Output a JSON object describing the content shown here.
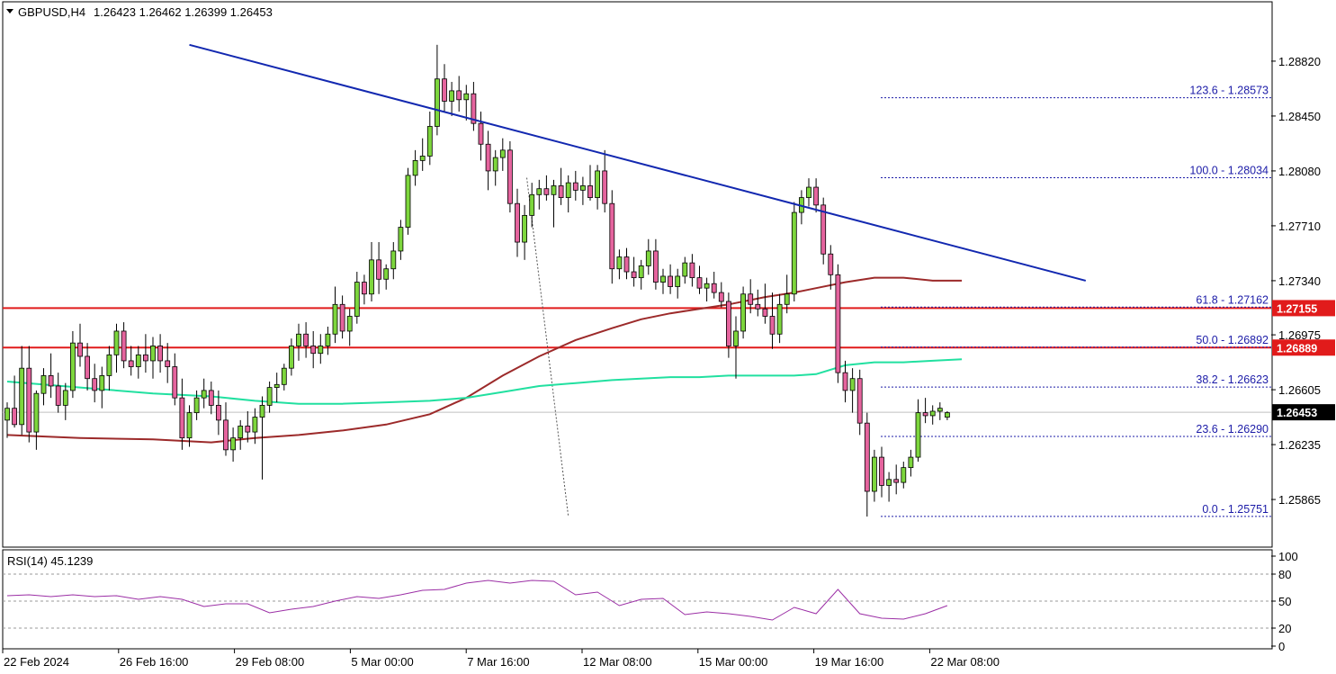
{
  "header": {
    "symbol": "GBPUSD,H4",
    "ohlc": "1.26423 1.26462 1.26399 1.26453"
  },
  "rsi_header": "RSI(14) 45.1239",
  "colors": {
    "bull": "#7dd63d",
    "bear": "#e5649e",
    "ma_slow": "#9c2a2a",
    "ma_fast": "#21e0a0",
    "trendline": "#1228b0",
    "support": "#e11b1b",
    "fib": "#1c1ca8",
    "rsi": "#9b2ea5"
  },
  "chart_data": [
    {
      "type": "candlestick",
      "title": "GBPUSD,H4",
      "ylim": [
        1.2555,
        1.2922
      ],
      "y_ticks": [
        "1.28820",
        "1.28450",
        "1.28080",
        "1.27710",
        "1.27340",
        "1.26975",
        "1.26605",
        "1.26235",
        "1.25865"
      ],
      "x_tick_labels": [
        "22 Feb 2024",
        "26 Feb 16:00",
        "29 Feb 08:00",
        "5 Mar 00:00",
        "7 Mar 16:00",
        "12 Mar 08:00",
        "15 Mar 00:00",
        "19 Mar 16:00",
        "22 Mar 08:00"
      ],
      "price_tags": [
        {
          "label": "1.27155",
          "value": 1.27155,
          "style": "red"
        },
        {
          "label": "1.26889",
          "value": 1.26889,
          "style": "red"
        },
        {
          "label": "1.26453",
          "value": 1.26453,
          "style": "current"
        }
      ],
      "horizontal_levels": [
        1.27155,
        1.26889
      ],
      "current_price": 1.26453,
      "fibonacci": [
        {
          "label": "123.6 - 1.28573",
          "value": 1.28573
        },
        {
          "label": "100.0 - 1.28034",
          "value": 1.28034
        },
        {
          "label": "61.8 - 1.27162",
          "value": 1.27162
        },
        {
          "label": "50.0 - 1.26892",
          "value": 1.26892
        },
        {
          "label": "38.2 - 1.26623",
          "value": 1.26623
        },
        {
          "label": "23.6 - 1.26290",
          "value": 1.2629
        },
        {
          "label": "0.0 - 1.25751",
          "value": 1.25751
        }
      ],
      "trendline": [
        [
          25,
          1.2893
        ],
        [
          148,
          1.2734
        ]
      ],
      "fib_anchor": [
        [
          71.3,
          1.28034
        ],
        [
          77,
          1.25751
        ]
      ],
      "candles": [
        [
          1.264,
          1.2652,
          1.2628,
          1.2648
        ],
        [
          1.2648,
          1.267,
          1.2635,
          1.2637
        ],
        [
          1.2637,
          1.269,
          1.263,
          1.2675
        ],
        [
          1.2675,
          1.269,
          1.2625,
          1.2632
        ],
        [
          1.2632,
          1.266,
          1.262,
          1.2658
        ],
        [
          1.2658,
          1.2675,
          1.265,
          1.267
        ],
        [
          1.267,
          1.2685,
          1.2655,
          1.2663
        ],
        [
          1.2663,
          1.2672,
          1.2645,
          1.265
        ],
        [
          1.265,
          1.2665,
          1.264,
          1.266
        ],
        [
          1.266,
          1.27,
          1.2655,
          1.2692
        ],
        [
          1.2692,
          1.2705,
          1.2676,
          1.2683
        ],
        [
          1.2683,
          1.2692,
          1.266,
          1.2668
        ],
        [
          1.2668,
          1.2678,
          1.2652,
          1.266
        ],
        [
          1.266,
          1.2676,
          1.2648,
          1.267
        ],
        [
          1.267,
          1.269,
          1.266,
          1.2684
        ],
        [
          1.2684,
          1.2705,
          1.2672,
          1.27
        ],
        [
          1.27,
          1.2706,
          1.2675,
          1.268
        ],
        [
          1.268,
          1.269,
          1.267,
          1.2676
        ],
        [
          1.2676,
          1.269,
          1.2668,
          1.2684
        ],
        [
          1.2684,
          1.2698,
          1.2672,
          1.268
        ],
        [
          1.268,
          1.2696,
          1.2668,
          1.269
        ],
        [
          1.269,
          1.2698,
          1.2672,
          1.268
        ],
        [
          1.268,
          1.2692,
          1.2665,
          1.2676
        ],
        [
          1.2676,
          1.2685,
          1.265,
          1.2655
        ],
        [
          1.2655,
          1.2668,
          1.262,
          1.2628
        ],
        [
          1.2628,
          1.265,
          1.2622,
          1.2645
        ],
        [
          1.2645,
          1.266,
          1.264,
          1.2655
        ],
        [
          1.2655,
          1.2668,
          1.2648,
          1.266
        ],
        [
          1.266,
          1.2666,
          1.2644,
          1.265
        ],
        [
          1.265,
          1.266,
          1.263,
          1.264
        ],
        [
          1.264,
          1.2652,
          1.2616,
          1.262
        ],
        [
          1.262,
          1.2635,
          1.2612,
          1.2628
        ],
        [
          1.2628,
          1.264,
          1.262,
          1.2636
        ],
        [
          1.2636,
          1.2646,
          1.2625,
          1.2632
        ],
        [
          1.2632,
          1.2648,
          1.2624,
          1.2642
        ],
        [
          1.2642,
          1.2656,
          1.26,
          1.265
        ],
        [
          1.265,
          1.2666,
          1.2645,
          1.2662
        ],
        [
          1.2662,
          1.2672,
          1.2652,
          1.2664
        ],
        [
          1.2664,
          1.2678,
          1.266,
          1.2675
        ],
        [
          1.2675,
          1.2695,
          1.267,
          1.269
        ],
        [
          1.269,
          1.2705,
          1.268,
          1.2698
        ],
        [
          1.2698,
          1.2706,
          1.2682,
          1.269
        ],
        [
          1.269,
          1.27,
          1.2675,
          1.2685
        ],
        [
          1.2685,
          1.2698,
          1.2678,
          1.269
        ],
        [
          1.269,
          1.2703,
          1.2684,
          1.2698
        ],
        [
          1.2698,
          1.273,
          1.2692,
          1.2718
        ],
        [
          1.2718,
          1.2724,
          1.2695,
          1.27
        ],
        [
          1.27,
          1.2715,
          1.269,
          1.271
        ],
        [
          1.271,
          1.274,
          1.2705,
          1.2733
        ],
        [
          1.2733,
          1.2738,
          1.2718,
          1.2725
        ],
        [
          1.2725,
          1.276,
          1.272,
          1.2748
        ],
        [
          1.2748,
          1.276,
          1.2725,
          1.2735
        ],
        [
          1.2735,
          1.2745,
          1.2728,
          1.2742
        ],
        [
          1.2742,
          1.276,
          1.2735,
          1.2754
        ],
        [
          1.2754,
          1.2775,
          1.2748,
          1.277
        ],
        [
          1.277,
          1.281,
          1.2765,
          1.2805
        ],
        [
          1.2805,
          1.2822,
          1.2798,
          1.2815
        ],
        [
          1.2815,
          1.283,
          1.2808,
          1.2818
        ],
        [
          1.2818,
          1.2848,
          1.2812,
          1.2838
        ],
        [
          1.2838,
          1.2893,
          1.2832,
          1.287
        ],
        [
          1.287,
          1.288,
          1.2848,
          1.2855
        ],
        [
          1.2855,
          1.2868,
          1.2845,
          1.2862
        ],
        [
          1.2862,
          1.2872,
          1.2848,
          1.2856
        ],
        [
          1.2856,
          1.2866,
          1.2842,
          1.286
        ],
        [
          1.286,
          1.2868,
          1.2835,
          1.284
        ],
        [
          1.284,
          1.2848,
          1.2815,
          1.2826
        ],
        [
          1.2826,
          1.2835,
          1.2795,
          1.2808
        ],
        [
          1.2808,
          1.2822,
          1.2798,
          1.2817
        ],
        [
          1.2817,
          1.283,
          1.2808,
          1.2822
        ],
        [
          1.2822,
          1.2828,
          1.278,
          1.2786
        ],
        [
          1.2786,
          1.2796,
          1.275,
          1.276
        ],
        [
          1.276,
          1.2785,
          1.2748,
          1.2778
        ],
        [
          1.2778,
          1.28,
          1.277,
          1.2792
        ],
        [
          1.2792,
          1.2802,
          1.2782,
          1.2796
        ],
        [
          1.2796,
          1.2805,
          1.2788,
          1.2792
        ],
        [
          1.2792,
          1.2802,
          1.277,
          1.2798
        ],
        [
          1.2798,
          1.281,
          1.2785,
          1.279
        ],
        [
          1.279,
          1.2805,
          1.278,
          1.28
        ],
        [
          1.28,
          1.2808,
          1.2788,
          1.2795
        ],
        [
          1.2795,
          1.2804,
          1.2785,
          1.2798
        ],
        [
          1.2798,
          1.2812,
          1.2788,
          1.279
        ],
        [
          1.279,
          1.2812,
          1.2782,
          1.2808
        ],
        [
          1.2808,
          1.2822,
          1.278,
          1.2786
        ],
        [
          1.2786,
          1.2795,
          1.2732,
          1.2742
        ],
        [
          1.2742,
          1.2755,
          1.2735,
          1.275
        ],
        [
          1.275,
          1.2756,
          1.2735,
          1.274
        ],
        [
          1.274,
          1.275,
          1.273,
          1.2736
        ],
        [
          1.2736,
          1.2748,
          1.2728,
          1.2744
        ],
        [
          1.2744,
          1.2762,
          1.2738,
          1.2754
        ],
        [
          1.2754,
          1.2762,
          1.2728,
          1.2733
        ],
        [
          1.2733,
          1.2742,
          1.2725,
          1.2737
        ],
        [
          1.2737,
          1.2745,
          1.2725,
          1.273
        ],
        [
          1.273,
          1.2742,
          1.2722,
          1.2737
        ],
        [
          1.2737,
          1.275,
          1.2732,
          1.2746
        ],
        [
          1.2746,
          1.2752,
          1.273,
          1.2736
        ],
        [
          1.2736,
          1.2744,
          1.2725,
          1.2729
        ],
        [
          1.2729,
          1.2736,
          1.272,
          1.2732
        ],
        [
          1.2732,
          1.274,
          1.2722,
          1.2726
        ],
        [
          1.2726,
          1.2733,
          1.2716,
          1.272
        ],
        [
          1.272,
          1.2726,
          1.2682,
          1.269
        ],
        [
          1.269,
          1.271,
          1.2668,
          1.27
        ],
        [
          1.27,
          1.273,
          1.2695,
          1.2725
        ],
        [
          1.2725,
          1.2735,
          1.2712,
          1.2718
        ],
        [
          1.2718,
          1.2728,
          1.271,
          1.2715
        ],
        [
          1.2715,
          1.2732,
          1.2705,
          1.271
        ],
        [
          1.271,
          1.2726,
          1.2688,
          1.2698
        ],
        [
          1.2698,
          1.2725,
          1.2692,
          1.2718
        ],
        [
          1.2718,
          1.2738,
          1.2712,
          1.2725
        ],
        [
          1.2725,
          1.2787,
          1.272,
          1.278
        ],
        [
          1.278,
          1.2795,
          1.2772,
          1.279
        ],
        [
          1.279,
          1.2803,
          1.2784,
          1.2797
        ],
        [
          1.2797,
          1.2803,
          1.278,
          1.2785
        ],
        [
          1.2785,
          1.279,
          1.2745,
          1.2752
        ],
        [
          1.2752,
          1.2758,
          1.2728,
          1.2738
        ],
        [
          1.2738,
          1.2745,
          1.2665,
          1.2672
        ],
        [
          1.2672,
          1.268,
          1.2652,
          1.266
        ],
        [
          1.266,
          1.2675,
          1.2645,
          1.2668
        ],
        [
          1.2668,
          1.2674,
          1.263,
          1.2638
        ],
        [
          1.2638,
          1.2645,
          1.2575,
          1.2592
        ],
        [
          1.2592,
          1.262,
          1.2585,
          1.2615
        ],
        [
          1.2615,
          1.2622,
          1.2588,
          1.2596
        ],
        [
          1.2596,
          1.2605,
          1.2585,
          1.26
        ],
        [
          1.26,
          1.261,
          1.259,
          1.2598
        ],
        [
          1.2598,
          1.2612,
          1.2594,
          1.2608
        ],
        [
          1.2608,
          1.262,
          1.2602,
          1.2615
        ],
        [
          1.2615,
          1.2654,
          1.2612,
          1.2645
        ],
        [
          1.2645,
          1.2655,
          1.2638,
          1.2643
        ],
        [
          1.2643,
          1.265,
          1.2637,
          1.2646
        ],
        [
          1.2646,
          1.2652,
          1.264,
          1.2648
        ],
        [
          1.2642,
          1.2646,
          1.264,
          1.2645
        ]
      ],
      "series": [
        {
          "name": "",
          "role": "slow moving average",
          "points": [
            [
              0,
              1.263
            ],
            [
              10,
              1.2628
            ],
            [
              20,
              1.2627
            ],
            [
              28,
              1.2625
            ],
            [
              34,
              1.2628
            ],
            [
              40,
              1.263
            ],
            [
              46,
              1.2633
            ],
            [
              52,
              1.2637
            ],
            [
              58,
              1.2644
            ],
            [
              63,
              1.2655
            ],
            [
              68,
              1.267
            ],
            [
              73,
              1.2683
            ],
            [
              78,
              1.2694
            ],
            [
              83,
              1.2702
            ],
            [
              87,
              1.2708
            ],
            [
              91,
              1.2712
            ],
            [
              95,
              1.2715
            ],
            [
              99,
              1.2718
            ],
            [
              104,
              1.2723
            ],
            [
              108,
              1.2726
            ],
            [
              111,
              1.2729
            ],
            [
              115,
              1.2733
            ],
            [
              119,
              1.2736
            ],
            [
              123,
              1.2736
            ],
            [
              127,
              1.2734
            ],
            [
              131,
              1.2734
            ]
          ]
        },
        {
          "name": "",
          "role": "fast moving average",
          "points": [
            [
              0,
              1.2666
            ],
            [
              10,
              1.2662
            ],
            [
              20,
              1.2658
            ],
            [
              28,
              1.2656
            ],
            [
              34,
              1.2653
            ],
            [
              40,
              1.2651
            ],
            [
              46,
              1.2651
            ],
            [
              52,
              1.2652
            ],
            [
              58,
              1.2653
            ],
            [
              63,
              1.2655
            ],
            [
              68,
              1.2659
            ],
            [
              73,
              1.2663
            ],
            [
              78,
              1.2665
            ],
            [
              83,
              1.2667
            ],
            [
              87,
              1.2668
            ],
            [
              91,
              1.2669
            ],
            [
              95,
              1.2669
            ],
            [
              99,
              1.267
            ],
            [
              104,
              1.267
            ],
            [
              108,
              1.267
            ],
            [
              111,
              1.2671
            ],
            [
              115,
              1.2677
            ],
            [
              119,
              1.2679
            ],
            [
              123,
              1.2679
            ],
            [
              127,
              1.268
            ],
            [
              131,
              1.2681
            ]
          ]
        }
      ]
    },
    {
      "type": "line",
      "title": "RSI(14) 45.1239",
      "ylim": [
        0,
        100
      ],
      "y_ticks": [
        "100",
        "80",
        "50",
        "20",
        "0"
      ],
      "levels": [
        80,
        50,
        20
      ],
      "series": [
        {
          "name": "RSI(14)",
          "x": [
            0,
            3,
            6,
            9,
            12,
            15,
            18,
            21,
            24,
            27,
            30,
            33,
            36,
            39,
            42,
            45,
            48,
            51,
            54,
            57,
            60,
            63,
            66,
            69,
            72,
            75,
            78,
            81,
            84,
            87,
            90,
            93,
            96,
            99,
            102,
            105,
            108,
            111,
            114,
            117,
            120,
            123,
            126,
            129
          ],
          "values": [
            56,
            57,
            55,
            57,
            55,
            56,
            52,
            55,
            52,
            44,
            47,
            47,
            37,
            41,
            44,
            50,
            55,
            53,
            57,
            62,
            63,
            70,
            73,
            70,
            73,
            72,
            57,
            60,
            45,
            52,
            53,
            35,
            38,
            36,
            33,
            29,
            43,
            36,
            63,
            36,
            31,
            30,
            36,
            45
          ]
        }
      ]
    }
  ]
}
